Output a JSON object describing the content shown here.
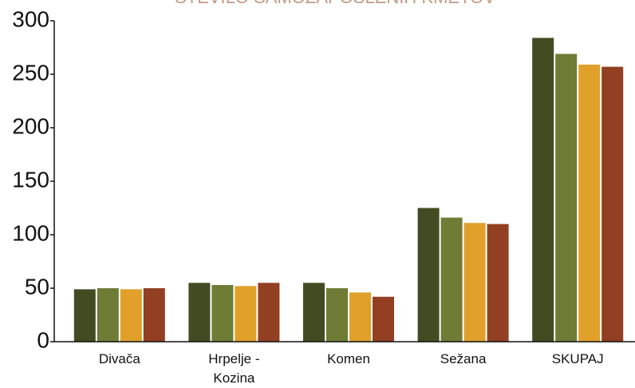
{
  "chart_data": {
    "type": "bar",
    "title": "ŠTEVILO SAMOZAPOSLENIH KMETOV",
    "categories": [
      "Divača",
      "Hrpelje - Kozina",
      "Komen",
      "Sežana",
      "SKUPAJ"
    ],
    "series": [
      {
        "color": "#434b22",
        "values": [
          49,
          55,
          55,
          125,
          284
        ]
      },
      {
        "color": "#6e7c35",
        "values": [
          50,
          53,
          50,
          116,
          269
        ]
      },
      {
        "color": "#e0a02a",
        "values": [
          49,
          52,
          46,
          111,
          259
        ]
      },
      {
        "color": "#923f22",
        "values": [
          50,
          55,
          42,
          110,
          257
        ]
      }
    ],
    "ylim": [
      0,
      300
    ],
    "yticks": [
      0,
      50,
      100,
      150,
      200,
      250,
      300
    ],
    "grid": false
  }
}
